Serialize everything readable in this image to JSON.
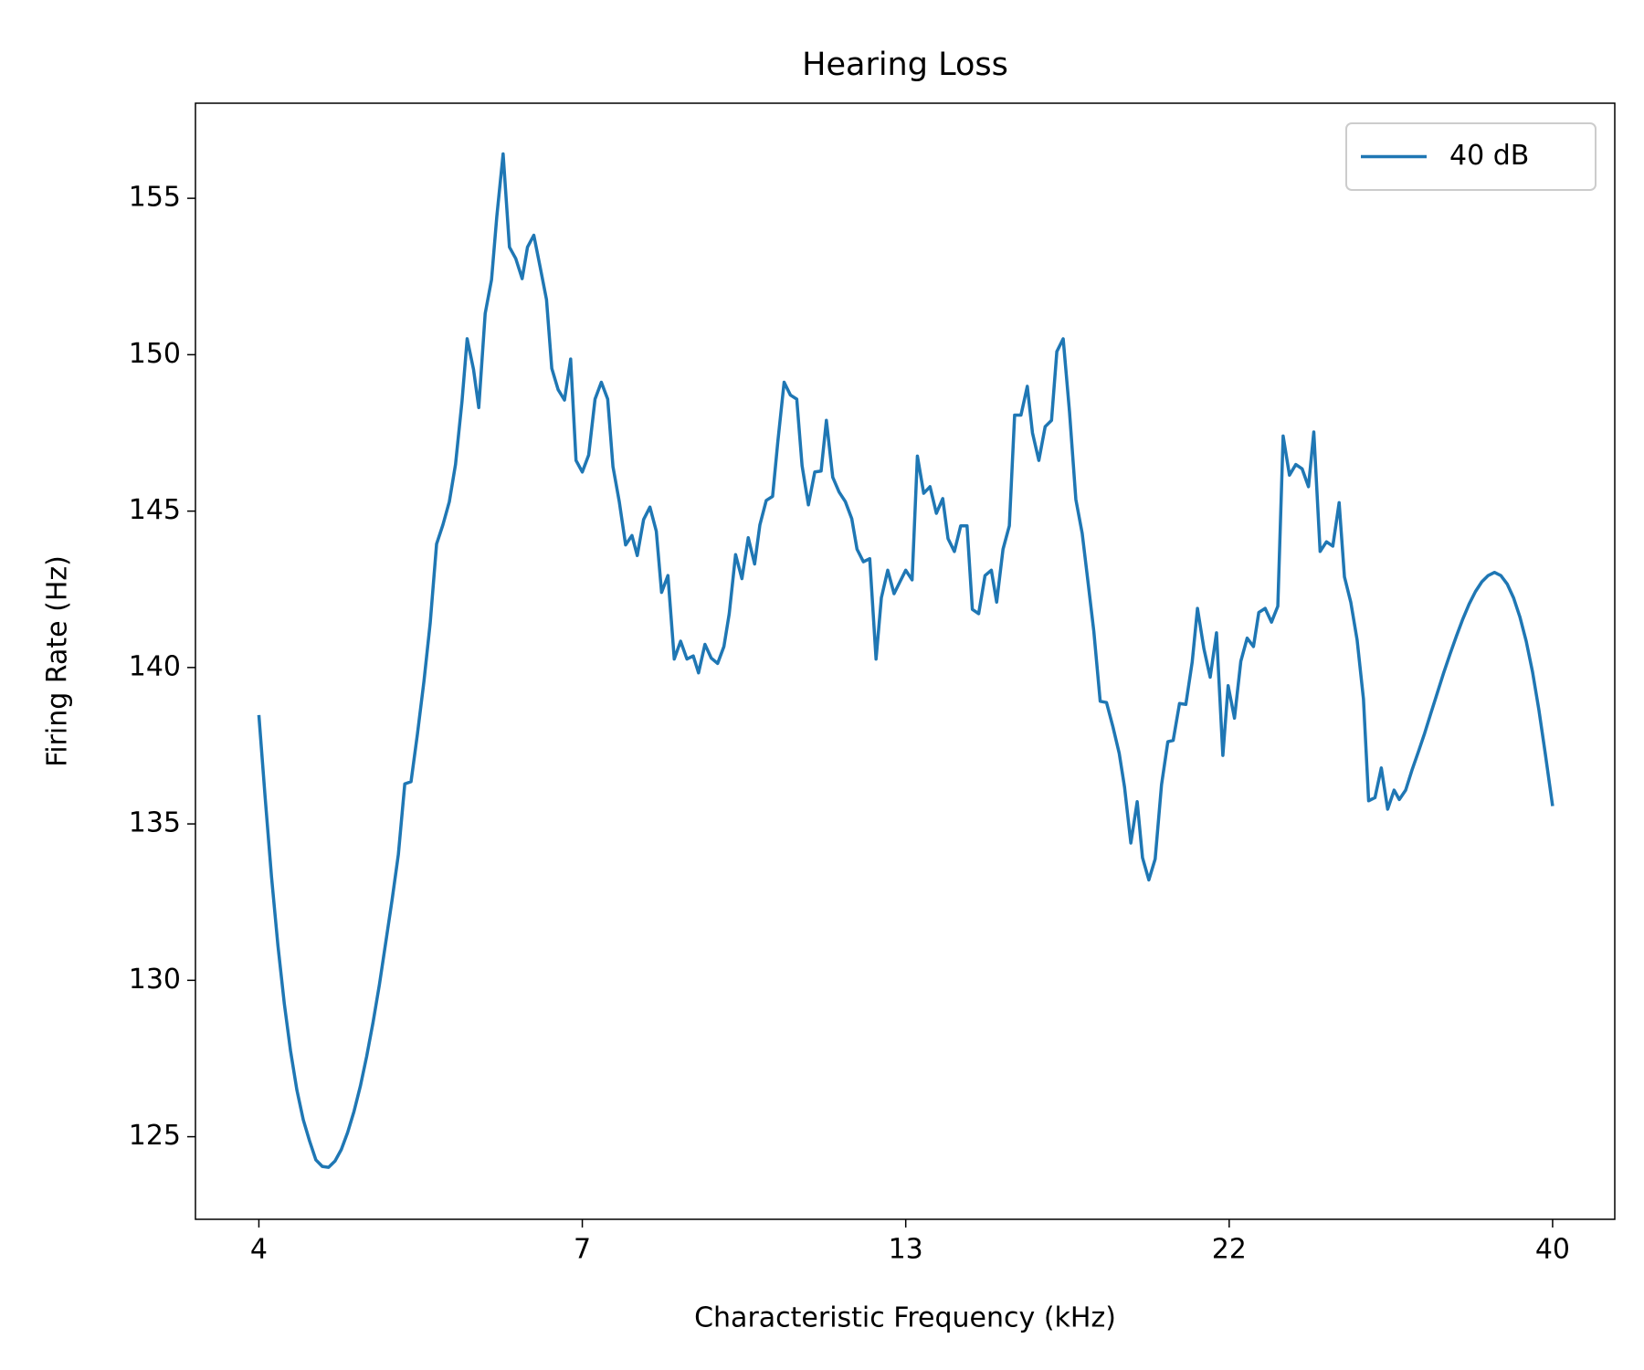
{
  "chart_data": {
    "type": "line",
    "title": "Hearing Loss",
    "xlabel": "Characteristic Frequency (kHz)",
    "ylabel": "Firing Rate (Hz)",
    "xscale": "log",
    "legend": "upper right",
    "grid": false,
    "xlim": [
      3.573,
      44.68
    ],
    "ylim": [
      122.36,
      158.04
    ],
    "xticks": [
      {
        "value": 4,
        "label": "4"
      },
      {
        "value": 7.113,
        "label": "7"
      },
      {
        "value": 12.649,
        "label": "13"
      },
      {
        "value": 22.494,
        "label": "22"
      },
      {
        "value": 40,
        "label": "40"
      }
    ],
    "yticks": [
      125,
      130,
      135,
      140,
      145,
      150,
      155
    ],
    "x": [
      4.0,
      4.045,
      4.091,
      4.138,
      4.185,
      4.232,
      4.28,
      4.329,
      4.378,
      4.427,
      4.478,
      4.528,
      4.58,
      4.632,
      4.684,
      4.738,
      4.792,
      4.846,
      4.901,
      4.957,
      5.012,
      5.07,
      5.127,
      5.186,
      5.244,
      5.304,
      5.366,
      5.426,
      5.488,
      5.55,
      5.614,
      5.676,
      5.742,
      5.795,
      5.861,
      5.916,
      5.984,
      6.052,
      6.109,
      6.178,
      6.248,
      6.319,
      6.391,
      6.452,
      6.525,
      6.599,
      6.674,
      6.737,
      6.814,
      6.891,
      6.967,
      7.034,
      7.113,
      7.194,
      7.276,
      7.358,
      7.442,
      7.512,
      7.597,
      7.683,
      7.77,
      7.844,
      7.933,
      8.023,
      8.114,
      8.191,
      8.284,
      8.378,
      8.473,
      8.569,
      8.666,
      8.748,
      8.848,
      8.948,
      9.05,
      9.152,
      9.239,
      9.344,
      9.45,
      9.557,
      9.666,
      9.757,
      9.868,
      9.98,
      10.072,
      10.187,
      10.302,
      10.419,
      10.518,
      10.637,
      10.758,
      10.88,
      10.983,
      11.108,
      11.234,
      11.361,
      11.49,
      11.599,
      11.731,
      11.864,
      11.998,
      12.112,
      12.25,
      12.389,
      12.529,
      12.649,
      12.793,
      12.914,
      13.06,
      13.208,
      13.358,
      13.51,
      13.638,
      13.793,
      13.949,
      14.107,
      14.241,
      14.402,
      14.566,
      14.731,
      14.871,
      15.04,
      15.21,
      15.354,
      15.528,
      15.704,
      15.85,
      16.03,
      16.212,
      16.396,
      16.552,
      16.74,
      16.93,
      17.122,
      17.316,
      17.512,
      17.679,
      17.88,
      18.082,
      18.288,
      18.495,
      18.671,
      18.882,
      19.097,
      19.278,
      19.497,
      19.718,
      19.942,
      20.168,
      20.36,
      20.591,
      20.824,
      21.06,
      21.26,
      21.502,
      21.746,
      21.992,
      22.242,
      22.452,
      22.707,
      22.965,
      23.225,
      23.488,
      23.712,
      23.981,
      24.253,
      24.528,
      24.761,
      25.042,
      25.326,
      25.613,
      25.904,
      26.15,
      26.446,
      26.746,
      27.05,
      27.356,
      27.616,
      27.929,
      28.246,
      28.567,
      28.831,
      29.158,
      29.489,
      29.824,
      30.169,
      30.448,
      30.794,
      31.143,
      31.496,
      31.854,
      32.215,
      32.581,
      32.95,
      33.332,
      33.71,
      34.092,
      34.479,
      34.87,
      35.266,
      35.666,
      36.07,
      36.48,
      36.894,
      37.312,
      37.736,
      38.164,
      38.596,
      39.034,
      39.478,
      40.0
    ],
    "series": [
      {
        "name": "40 dB",
        "color": "#1f77b4",
        "values": [
          138.48,
          135.84,
          133.31,
          131.11,
          129.26,
          127.74,
          126.49,
          125.54,
          124.86,
          124.26,
          124.05,
          124.02,
          124.22,
          124.59,
          125.13,
          125.81,
          126.62,
          127.57,
          128.65,
          129.86,
          131.18,
          132.57,
          134.02,
          136.28,
          136.35,
          137.87,
          139.56,
          141.42,
          143.95,
          144.56,
          145.3,
          146.49,
          148.51,
          150.51,
          149.53,
          148.31,
          151.32,
          152.4,
          154.42,
          156.42,
          153.44,
          153.07,
          152.43,
          153.44,
          153.82,
          152.8,
          151.76,
          149.56,
          148.88,
          148.55,
          149.86,
          146.62,
          146.25,
          146.79,
          148.58,
          149.12,
          148.58,
          146.42,
          145.3,
          143.92,
          144.22,
          143.58,
          144.73,
          145.13,
          144.36,
          142.4,
          142.94,
          140.27,
          140.84,
          140.27,
          140.37,
          139.83,
          140.74,
          140.3,
          140.13,
          140.67,
          141.72,
          143.61,
          142.84,
          144.15,
          143.31,
          144.56,
          145.34,
          145.47,
          147.19,
          149.12,
          148.71,
          148.58,
          146.45,
          145.2,
          146.25,
          146.28,
          147.9,
          146.08,
          145.61,
          145.3,
          144.76,
          143.78,
          143.38,
          143.48,
          140.27,
          142.23,
          143.11,
          142.36,
          142.77,
          143.11,
          142.8,
          146.76,
          145.57,
          145.78,
          144.93,
          145.4,
          144.12,
          143.71,
          144.53,
          144.53,
          141.86,
          141.72,
          142.94,
          143.11,
          142.09,
          143.78,
          144.53,
          148.07,
          148.07,
          148.99,
          147.5,
          146.62,
          147.7,
          147.9,
          150.1,
          150.51,
          148.17,
          145.37,
          144.29,
          142.6,
          141.15,
          138.92,
          138.88,
          138.11,
          137.26,
          136.18,
          134.39,
          135.71,
          133.92,
          133.21,
          133.88,
          136.25,
          137.63,
          137.67,
          138.85,
          138.82,
          140.17,
          141.89,
          140.61,
          139.69,
          141.11,
          137.19,
          139.42,
          138.38,
          140.2,
          140.94,
          140.67,
          141.76,
          141.89,
          141.45,
          141.96,
          147.4,
          146.15,
          146.49,
          146.35,
          145.78,
          147.53,
          143.71,
          144.02,
          143.88,
          145.27,
          142.9,
          142.09,
          140.88,
          138.99,
          135.74,
          135.84,
          136.79,
          135.47,
          136.08,
          135.78,
          136.08,
          136.72,
          137.3,
          137.9,
          138.55,
          139.19,
          139.83,
          140.44,
          141.01,
          141.55,
          142.03,
          142.43,
          142.74,
          142.94,
          143.04,
          142.94,
          142.67,
          142.23,
          141.62,
          140.84,
          139.86,
          138.65,
          137.26,
          135.57
        ]
      }
    ]
  }
}
